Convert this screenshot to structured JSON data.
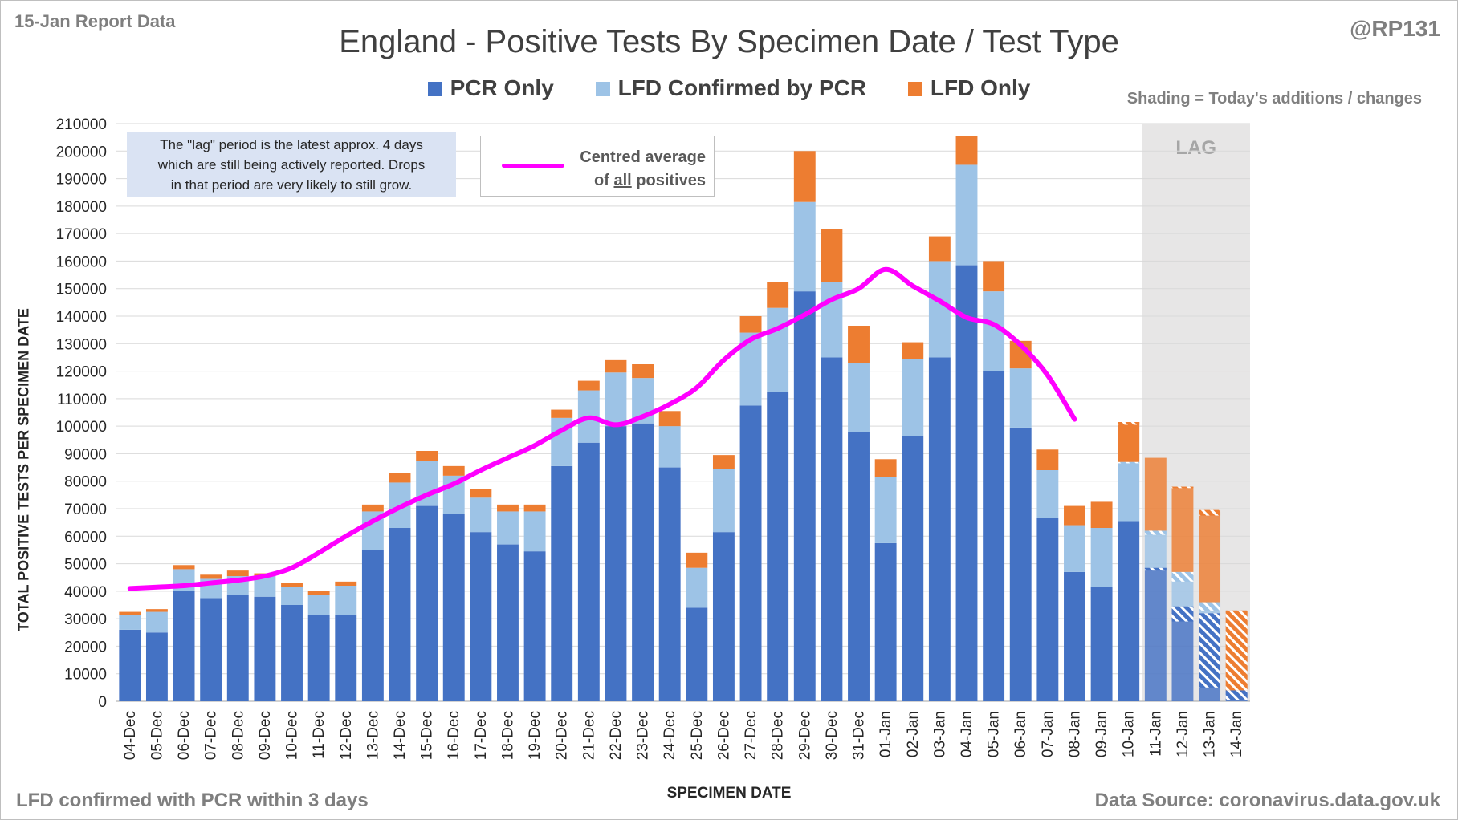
{
  "header": {
    "report_label": "15-Jan Report Data",
    "handle": "@RP131",
    "title": "England - Positive Tests By Specimen Date / Test Type",
    "shading_note": "Shading = Today's additions / changes"
  },
  "annotations": {
    "lag_note_lines": [
      "The \"lag\" period is the latest approx. 4 days",
      "which are still being actively reported.  Drops",
      "in that period are very likely to still grow."
    ],
    "avg_label_line1": "Centred average",
    "avg_label_of": "of",
    "avg_label_all": "all",
    "avg_label_positives": "positives",
    "lag_label": "LAG"
  },
  "footer": {
    "left_note": "LFD confirmed with PCR within 3 days",
    "source": "Data Source: coronavirus.data.gov.uk"
  },
  "colors": {
    "pcr": "#4472c4",
    "lfd_confirmed": "#9dc3e6",
    "lfd_only": "#ed7d31",
    "average": "#ff00ff",
    "lag_shade": "#e7e6e6"
  },
  "chart_data": {
    "type": "bar",
    "stacked": true,
    "xlabel": "SPECIMEN DATE",
    "ylabel": "TOTAL POSITIVE TESTS PER SPECIMEN DATE",
    "ylim": [
      0,
      210000
    ],
    "ytick_step": 10000,
    "grid": true,
    "legend_position": "top",
    "lag_period_start_category": "11-Jan",
    "categories": [
      "04-Dec",
      "05-Dec",
      "06-Dec",
      "07-Dec",
      "08-Dec",
      "09-Dec",
      "10-Dec",
      "11-Dec",
      "12-Dec",
      "13-Dec",
      "14-Dec",
      "15-Dec",
      "16-Dec",
      "17-Dec",
      "18-Dec",
      "19-Dec",
      "20-Dec",
      "21-Dec",
      "22-Dec",
      "23-Dec",
      "24-Dec",
      "25-Dec",
      "26-Dec",
      "27-Dec",
      "28-Dec",
      "29-Dec",
      "30-Dec",
      "31-Dec",
      "01-Jan",
      "02-Jan",
      "03-Jan",
      "04-Jan",
      "05-Jan",
      "06-Jan",
      "07-Jan",
      "08-Jan",
      "09-Jan",
      "10-Jan",
      "11-Jan",
      "12-Jan",
      "13-Jan",
      "14-Jan"
    ],
    "series": [
      {
        "name": "PCR Only",
        "values": [
          26000,
          25000,
          40000,
          37500,
          38500,
          38000,
          35000,
          31500,
          31500,
          55000,
          63000,
          71000,
          68000,
          61500,
          57000,
          54500,
          85500,
          94000,
          100000,
          101000,
          85000,
          34000,
          61500,
          107500,
          112500,
          149000,
          125000,
          98000,
          57500,
          96500,
          125000,
          158500,
          120000,
          99500,
          66500,
          47000,
          41500,
          65500,
          48500,
          34500,
          32000,
          4000
        ]
      },
      {
        "name": "LFD Confirmed by PCR",
        "values": [
          5500,
          7500,
          8000,
          7000,
          7000,
          7500,
          6500,
          7000,
          10500,
          14000,
          16500,
          16500,
          14000,
          12500,
          12000,
          14500,
          17500,
          19000,
          19500,
          16500,
          15000,
          14500,
          23000,
          26500,
          30500,
          32500,
          27500,
          25000,
          24000,
          28000,
          35000,
          36500,
          29000,
          21500,
          17500,
          17000,
          21500,
          21500,
          13500,
          12500,
          4000,
          0
        ]
      },
      {
        "name": "LFD Only",
        "values": [
          1000,
          1000,
          1500,
          1500,
          2000,
          1000,
          1500,
          1500,
          1500,
          2500,
          3500,
          3500,
          3500,
          3000,
          2500,
          2500,
          3000,
          3500,
          4500,
          5000,
          5500,
          5500,
          5000,
          6000,
          9500,
          18500,
          19000,
          13500,
          6500,
          6000,
          9000,
          10500,
          11000,
          10000,
          7500,
          7000,
          9500,
          14500,
          26500,
          31000,
          33500,
          29000
        ]
      }
    ],
    "todays_additions": {
      "categories": [
        "10-Jan",
        "11-Jan",
        "12-Jan",
        "13-Jan",
        "14-Jan"
      ],
      "PCR Only": [
        0,
        1000,
        5500,
        27000,
        3500
      ],
      "LFD Confirmed by PCR": [
        500,
        1500,
        3500,
        3000,
        0
      ],
      "LFD Only": [
        1000,
        0,
        500,
        2000,
        29000
      ]
    },
    "average_series": {
      "name": "Centred average of all positives",
      "categories": [
        "04-Dec",
        "05-Dec",
        "06-Dec",
        "07-Dec",
        "08-Dec",
        "09-Dec",
        "10-Dec",
        "11-Dec",
        "12-Dec",
        "13-Dec",
        "14-Dec",
        "15-Dec",
        "16-Dec",
        "17-Dec",
        "18-Dec",
        "19-Dec",
        "20-Dec",
        "21-Dec",
        "22-Dec",
        "23-Dec",
        "24-Dec",
        "25-Dec",
        "26-Dec",
        "27-Dec",
        "28-Dec",
        "29-Dec",
        "30-Dec",
        "31-Dec",
        "01-Jan",
        "02-Jan",
        "03-Jan",
        "04-Jan",
        "05-Jan",
        "06-Jan",
        "07-Jan",
        "08-Jan"
      ],
      "values": [
        41000,
        41500,
        42000,
        43000,
        44000,
        45500,
        48500,
        54000,
        60000,
        65500,
        70500,
        75000,
        79000,
        84000,
        88500,
        93000,
        98500,
        103000,
        100500,
        103500,
        108000,
        114000,
        124000,
        131500,
        135500,
        140500,
        146000,
        150000,
        157000,
        151000,
        145500,
        139500,
        137000,
        129500,
        118500,
        102500
      ]
    }
  }
}
